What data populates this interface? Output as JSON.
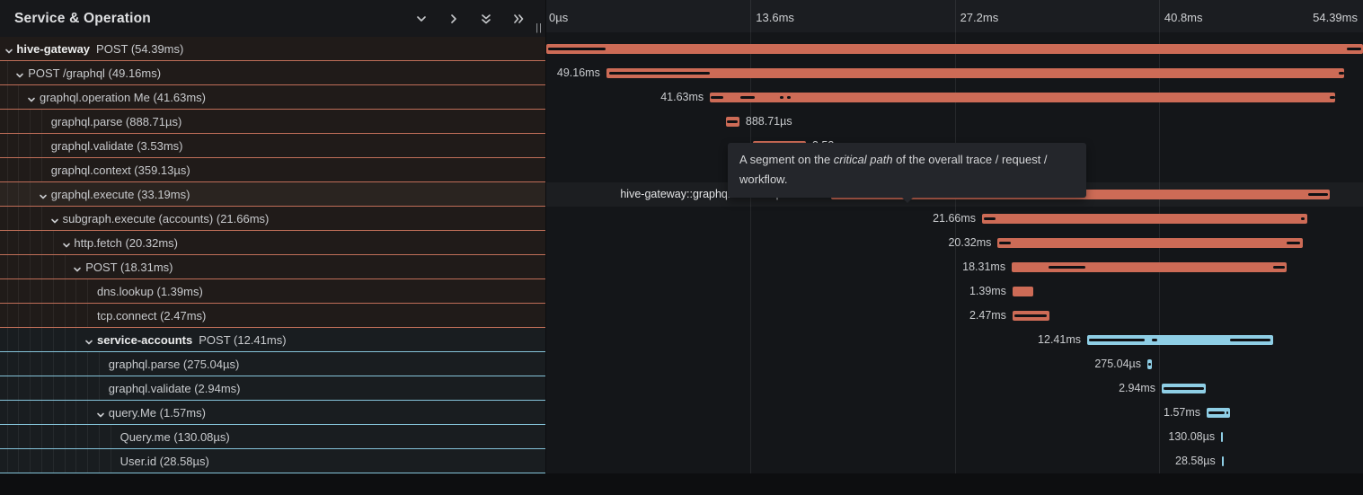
{
  "panel": {
    "title": "Service & Operation",
    "resize_handle": "||",
    "controls": [
      {
        "icon": "chevron-down-icon"
      },
      {
        "icon": "chevron-right-icon"
      },
      {
        "icon": "double-chevron-down-icon"
      },
      {
        "icon": "double-chevron-right-icon"
      }
    ]
  },
  "colors": {
    "salmon_bar": "#cd6b56",
    "salmon_border": "#bf6e58",
    "salmon_row_bg": "#201b19",
    "salmon_row_bg_hover": "#2a2420",
    "blue_bar": "#8ecee5",
    "blue_border": "#85c4da",
    "blue_row_bg": "#191d20",
    "critical_path": "#101114"
  },
  "timeline": {
    "total_ms": 54.39,
    "ticks": [
      {
        "label": "0µs",
        "ms": 0
      },
      {
        "label": "13.6ms",
        "ms": 13.6
      },
      {
        "label": "27.2ms",
        "ms": 27.2
      },
      {
        "label": "40.8ms",
        "ms": 40.8
      },
      {
        "label": "54.39ms",
        "ms": 54.39
      }
    ]
  },
  "tooltip": {
    "prefix": "A segment on the ",
    "emphasis": "critical path",
    "suffix": " of the overall trace / request / workflow."
  },
  "spans": [
    {
      "service": "hive-gateway",
      "label": "POST (54.39ms)",
      "depth": 0,
      "expandable": true,
      "color": "salmon",
      "start_ms": 0,
      "dur_ms": 54.39,
      "bar_label": "",
      "label_side": "none",
      "hovered": false,
      "critical": [
        [
          0.1,
          3.95
        ],
        [
          53.3,
          54.25
        ]
      ]
    },
    {
      "service": "",
      "label": "POST /graphql (49.16ms)",
      "depth": 1,
      "expandable": true,
      "color": "salmon",
      "start_ms": 4.0,
      "dur_ms": 49.16,
      "bar_label": "49.16ms",
      "label_side": "left",
      "hovered": false,
      "critical": [
        [
          4.2,
          10.9
        ],
        [
          52.8,
          53.16
        ]
      ]
    },
    {
      "service": "",
      "label": "graphql.operation Me (41.63ms)",
      "depth": 2,
      "expandable": true,
      "color": "salmon",
      "start_ms": 10.9,
      "dur_ms": 41.63,
      "bar_label": "41.63ms",
      "label_side": "left",
      "hovered": false,
      "critical": [
        [
          10.95,
          11.75
        ],
        [
          12.9,
          13.9
        ],
        [
          15.55,
          15.8
        ],
        [
          16.05,
          16.3
        ],
        [
          52.2,
          52.53
        ]
      ]
    },
    {
      "service": "",
      "label": "graphql.parse (888.71µs)",
      "depth": 3,
      "expandable": false,
      "color": "salmon",
      "start_ms": 11.97,
      "dur_ms": 0.88871,
      "bar_label": "888.71µs",
      "label_side": "right",
      "hovered": false,
      "critical": [
        [
          12.05,
          12.75
        ]
      ]
    },
    {
      "service": "",
      "label": "graphql.validate (3.53ms)",
      "depth": 3,
      "expandable": false,
      "color": "salmon",
      "start_ms": 13.76,
      "dur_ms": 3.53,
      "bar_label": "3.53ms",
      "label_side": "right",
      "hovered": false,
      "critical": [
        [
          13.9,
          17.1
        ]
      ]
    },
    {
      "service": "",
      "label": "graphql.context (359.13µs)",
      "depth": 3,
      "expandable": false,
      "color": "salmon",
      "start_ms": 17.35,
      "dur_ms": 0.35913,
      "bar_label": "359.13µs",
      "label_side": "right",
      "hovered": false,
      "critical": [
        [
          17.4,
          17.65
        ]
      ]
    },
    {
      "service": "",
      "label": "graphql.execute (33.19ms)",
      "depth": 3,
      "expandable": true,
      "color": "salmon",
      "start_ms": 18.97,
      "dur_ms": 33.19,
      "bar_label": "hive-gateway::graphql.execute | 33.19ms",
      "label_side": "left",
      "hovered": true,
      "critical": [
        [
          19.15,
          28.85
        ],
        [
          50.75,
          52.05
        ]
      ]
    },
    {
      "service": "",
      "label": "subgraph.execute (accounts) (21.66ms)",
      "depth": 4,
      "expandable": true,
      "color": "salmon",
      "start_ms": 29.02,
      "dur_ms": 21.66,
      "bar_label": "21.66ms",
      "label_side": "left",
      "hovered": false,
      "critical": [
        [
          29.15,
          29.9
        ],
        [
          50.25,
          50.5
        ]
      ]
    },
    {
      "service": "",
      "label": "http.fetch (20.32ms)",
      "depth": 5,
      "expandable": true,
      "color": "salmon",
      "start_ms": 30.06,
      "dur_ms": 20.32,
      "bar_label": "20.32ms",
      "label_side": "left",
      "hovered": false,
      "critical": [
        [
          30.15,
          30.95
        ],
        [
          49.3,
          50.2
        ]
      ]
    },
    {
      "service": "",
      "label": "POST (18.31ms)",
      "depth": 6,
      "expandable": true,
      "color": "salmon",
      "start_ms": 31.0,
      "dur_ms": 18.31,
      "bar_label": "18.31ms",
      "label_side": "left",
      "hovered": false,
      "critical": [
        [
          33.45,
          35.9
        ],
        [
          48.4,
          49.2
        ]
      ]
    },
    {
      "service": "",
      "label": "dns.lookup (1.39ms)",
      "depth": 7,
      "expandable": false,
      "color": "salmon",
      "start_ms": 31.05,
      "dur_ms": 1.39,
      "bar_label": "1.39ms",
      "label_side": "left",
      "hovered": false,
      "critical": []
    },
    {
      "service": "",
      "label": "tcp.connect (2.47ms)",
      "depth": 7,
      "expandable": false,
      "color": "salmon",
      "start_ms": 31.05,
      "dur_ms": 2.47,
      "bar_label": "2.47ms",
      "label_side": "left",
      "hovered": false,
      "critical": [
        [
          31.15,
          33.3
        ]
      ]
    },
    {
      "service": "service-accounts",
      "label": "POST (12.41ms)",
      "depth": 7,
      "expandable": true,
      "color": "blue",
      "start_ms": 36.02,
      "dur_ms": 12.41,
      "bar_label": "12.41ms",
      "label_side": "left",
      "hovered": false,
      "critical": [
        [
          36.15,
          39.85
        ],
        [
          40.35,
          40.7
        ],
        [
          45.55,
          48.25
        ]
      ]
    },
    {
      "service": "",
      "label": "graphql.parse (275.04µs)",
      "depth": 8,
      "expandable": false,
      "color": "blue",
      "start_ms": 40.03,
      "dur_ms": 0.27504,
      "bar_label": "275.04µs",
      "label_side": "left",
      "hovered": false,
      "critical": [
        [
          40.1,
          40.25
        ]
      ]
    },
    {
      "service": "",
      "label": "graphql.validate (2.94ms)",
      "depth": 8,
      "expandable": false,
      "color": "blue",
      "start_ms": 40.99,
      "dur_ms": 2.94,
      "bar_label": "2.94ms",
      "label_side": "left",
      "hovered": false,
      "critical": [
        [
          41.1,
          43.8
        ]
      ]
    },
    {
      "service": "",
      "label": "query.Me (1.57ms)",
      "depth": 8,
      "expandable": true,
      "color": "blue",
      "start_ms": 43.98,
      "dur_ms": 1.57,
      "bar_label": "1.57ms",
      "label_side": "left",
      "hovered": false,
      "critical": [
        [
          44.1,
          45.15
        ],
        [
          45.28,
          45.42
        ]
      ]
    },
    {
      "service": "",
      "label": "Query.me (130.08µs)",
      "depth": 9,
      "expandable": false,
      "color": "blue",
      "start_ms": 44.94,
      "dur_ms": 0.13008,
      "bar_label": "130.08µs",
      "label_side": "left",
      "hovered": false,
      "critical": []
    },
    {
      "service": "",
      "label": "User.id (28.58µs)",
      "depth": 9,
      "expandable": false,
      "color": "blue",
      "start_ms": 44.98,
      "dur_ms": 0.02858,
      "bar_label": "28.58µs",
      "label_side": "left",
      "hovered": false,
      "critical": []
    }
  ]
}
